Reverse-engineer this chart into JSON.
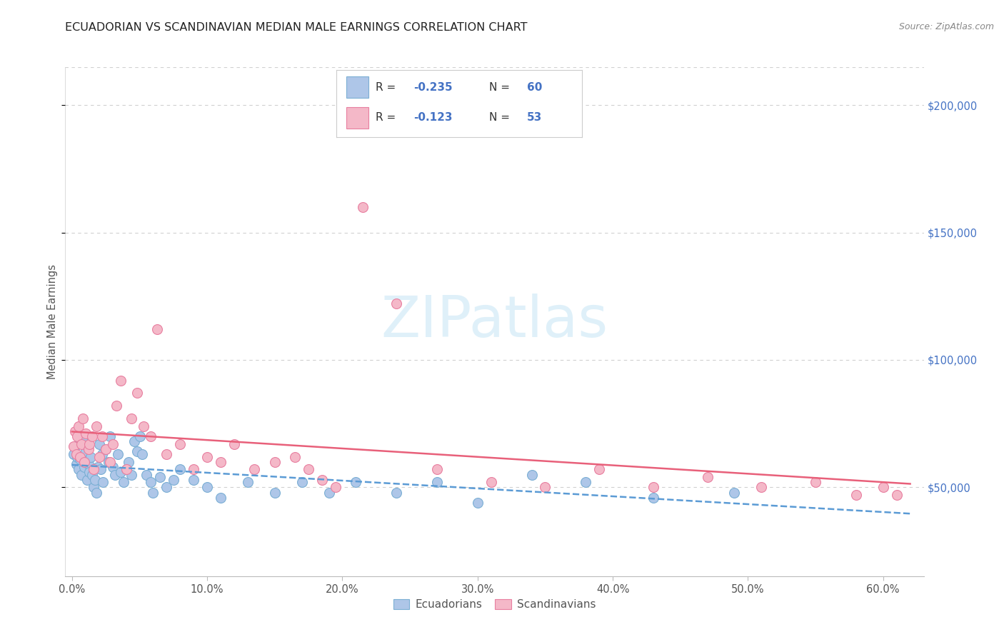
{
  "title": "ECUADORIAN VS SCANDINAVIAN MEDIAN MALE EARNINGS CORRELATION CHART",
  "source": "Source: ZipAtlas.com",
  "ylabel": "Median Male Earnings",
  "xlabel_ticks": [
    "0.0%",
    "10.0%",
    "20.0%",
    "30.0%",
    "40.0%",
    "50.0%",
    "60.0%"
  ],
  "xlabel_vals": [
    0.0,
    0.1,
    0.2,
    0.3,
    0.4,
    0.5,
    0.6
  ],
  "ytick_vals": [
    50000,
    100000,
    150000,
    200000
  ],
  "ytick_labels": [
    "$50,000",
    "$100,000",
    "$150,000",
    "$200,000"
  ],
  "ylim": [
    15000,
    215000
  ],
  "xlim": [
    -0.005,
    0.63
  ],
  "ecuador_color": "#aec6e8",
  "scandinavian_color": "#f4b8c8",
  "ecuador_edge": "#7bafd4",
  "scandinavian_edge": "#e87fa0",
  "trend_blue": "#5b9bd5",
  "trend_pink": "#e8607a",
  "watermark": "ZIPatlas",
  "watermark_color": "#daeef8",
  "ecuador_x": [
    0.001,
    0.002,
    0.003,
    0.004,
    0.005,
    0.006,
    0.007,
    0.008,
    0.009,
    0.01,
    0.011,
    0.012,
    0.013,
    0.014,
    0.015,
    0.016,
    0.017,
    0.018,
    0.019,
    0.02,
    0.021,
    0.022,
    0.023,
    0.025,
    0.027,
    0.028,
    0.03,
    0.032,
    0.034,
    0.036,
    0.038,
    0.04,
    0.042,
    0.044,
    0.046,
    0.048,
    0.05,
    0.052,
    0.055,
    0.058,
    0.06,
    0.065,
    0.07,
    0.075,
    0.08,
    0.09,
    0.1,
    0.11,
    0.13,
    0.15,
    0.17,
    0.19,
    0.21,
    0.24,
    0.27,
    0.3,
    0.34,
    0.38,
    0.43,
    0.49
  ],
  "ecuador_y": [
    63000,
    66000,
    59000,
    62000,
    57000,
    61000,
    55000,
    68000,
    58000,
    64000,
    53000,
    59000,
    56000,
    62000,
    55000,
    50000,
    53000,
    48000,
    58000,
    67000,
    57000,
    63000,
    52000,
    65000,
    60000,
    70000,
    58000,
    55000,
    63000,
    56000,
    52000,
    57000,
    60000,
    55000,
    68000,
    64000,
    70000,
    63000,
    55000,
    52000,
    48000,
    54000,
    50000,
    53000,
    57000,
    53000,
    50000,
    46000,
    52000,
    48000,
    52000,
    48000,
    52000,
    48000,
    52000,
    44000,
    55000,
    52000,
    46000,
    48000
  ],
  "scandinavian_x": [
    0.001,
    0.002,
    0.003,
    0.004,
    0.005,
    0.006,
    0.007,
    0.008,
    0.009,
    0.01,
    0.012,
    0.013,
    0.015,
    0.016,
    0.018,
    0.02,
    0.022,
    0.025,
    0.028,
    0.03,
    0.033,
    0.036,
    0.04,
    0.044,
    0.048,
    0.053,
    0.058,
    0.063,
    0.07,
    0.08,
    0.09,
    0.1,
    0.11,
    0.12,
    0.135,
    0.15,
    0.165,
    0.175,
    0.185,
    0.195,
    0.215,
    0.24,
    0.27,
    0.31,
    0.35,
    0.39,
    0.43,
    0.47,
    0.51,
    0.55,
    0.58,
    0.6,
    0.61
  ],
  "scandinavian_y": [
    66000,
    72000,
    63000,
    70000,
    74000,
    62000,
    67000,
    77000,
    60000,
    71000,
    65000,
    67000,
    70000,
    57000,
    74000,
    62000,
    70000,
    65000,
    60000,
    67000,
    82000,
    92000,
    57000,
    77000,
    87000,
    74000,
    70000,
    112000,
    63000,
    67000,
    57000,
    62000,
    60000,
    67000,
    57000,
    60000,
    62000,
    57000,
    53000,
    50000,
    160000,
    122000,
    57000,
    52000,
    50000,
    57000,
    50000,
    54000,
    50000,
    52000,
    47000,
    50000,
    47000
  ]
}
